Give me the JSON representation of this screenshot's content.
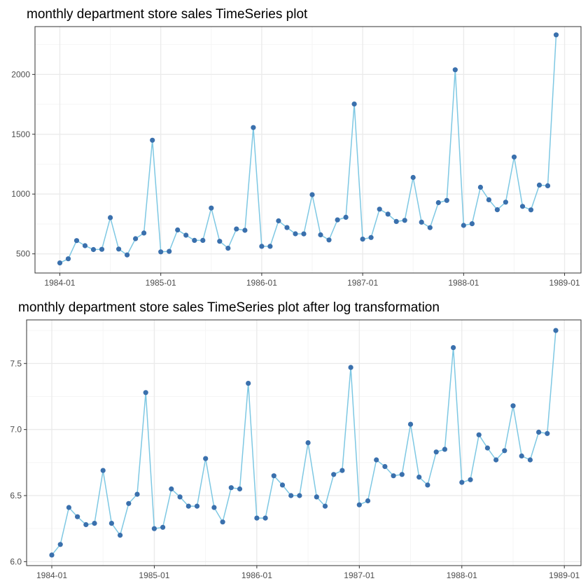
{
  "chart_data": [
    {
      "type": "line",
      "title": "monthly department store sales TimeSeries plot",
      "xlabel": "",
      "ylabel": "",
      "x_ticks": [
        "1984-01",
        "1985-01",
        "1986-01",
        "1987-01",
        "1988-01",
        "1989-01"
      ],
      "y_ticks": [
        "500",
        "1000",
        "1500",
        "2000"
      ],
      "ylim": [
        340,
        2400
      ],
      "grid": true,
      "colors": {
        "line": "#7ec8e3",
        "point": "#3a70ad",
        "grid_major": "#ebebeb",
        "grid_minor": "#f5f5f5",
        "border": "#333333"
      },
      "series": [
        {
          "x": [
            "1984-01",
            "1984-02",
            "1984-03",
            "1984-04",
            "1984-05",
            "1984-06",
            "1984-07",
            "1984-08",
            "1984-09",
            "1984-10",
            "1984-11",
            "1984-12",
            "1985-01",
            "1985-02",
            "1985-03",
            "1985-04",
            "1985-05",
            "1985-06",
            "1985-07",
            "1985-08",
            "1985-09",
            "1985-10",
            "1985-11",
            "1985-12",
            "1986-01",
            "1986-02",
            "1986-03",
            "1986-04",
            "1986-05",
            "1986-06",
            "1986-07",
            "1986-08",
            "1986-09",
            "1986-10",
            "1986-11",
            "1986-12",
            "1987-01",
            "1987-02",
            "1987-03",
            "1987-04",
            "1987-05",
            "1987-06",
            "1987-07",
            "1987-08",
            "1987-09",
            "1987-10",
            "1987-11",
            "1987-12",
            "1988-01",
            "1988-02",
            "1988-03",
            "1988-04",
            "1988-05",
            "1988-06",
            "1988-07",
            "1988-08",
            "1988-09",
            "1988-10",
            "1988-11",
            "1988-12"
          ],
          "values": [
            424,
            459,
            611,
            568,
            536,
            538,
            803,
            540,
            491,
            627,
            674,
            1450,
            517,
            521,
            700,
            656,
            613,
            613,
            883,
            605,
            547,
            708,
            697,
            1556,
            563,
            563,
            776,
            720,
            668,
            667,
            995,
            659,
            616,
            784,
            806,
            1753,
            623,
            637,
            874,
            832,
            771,
            780,
            1139,
            765,
            719,
            928,
            947,
            2039,
            738,
            752,
            1057,
            952,
            869,
            932,
            1310,
            897,
            868,
            1075,
            1069,
            2331
          ]
        }
      ]
    },
    {
      "type": "line",
      "title": "monthly department store sales TimeSeries plot after log transformation",
      "xlabel": "",
      "ylabel": "",
      "x_ticks": [
        "1984-01",
        "1985-01",
        "1986-01",
        "1987-01",
        "1988-01",
        "1989-01"
      ],
      "y_ticks": [
        "6.0",
        "6.5",
        "7.0",
        "7.5"
      ],
      "ylim": [
        5.97,
        7.83
      ],
      "grid": true,
      "colors": {
        "line": "#7ec8e3",
        "point": "#3a70ad",
        "grid_major": "#ebebeb",
        "grid_minor": "#f5f5f5",
        "border": "#333333"
      },
      "series": [
        {
          "x": [
            "1984-01",
            "1984-02",
            "1984-03",
            "1984-04",
            "1984-05",
            "1984-06",
            "1984-07",
            "1984-08",
            "1984-09",
            "1984-10",
            "1984-11",
            "1984-12",
            "1985-01",
            "1985-02",
            "1985-03",
            "1985-04",
            "1985-05",
            "1985-06",
            "1985-07",
            "1985-08",
            "1985-09",
            "1985-10",
            "1985-11",
            "1985-12",
            "1986-01",
            "1986-02",
            "1986-03",
            "1986-04",
            "1986-05",
            "1986-06",
            "1986-07",
            "1986-08",
            "1986-09",
            "1986-10",
            "1986-11",
            "1986-12",
            "1987-01",
            "1987-02",
            "1987-03",
            "1987-04",
            "1987-05",
            "1987-06",
            "1987-07",
            "1987-08",
            "1987-09",
            "1987-10",
            "1987-11",
            "1987-12",
            "1988-01",
            "1988-02",
            "1988-03",
            "1988-04",
            "1988-05",
            "1988-06",
            "1988-07",
            "1988-08",
            "1988-09",
            "1988-10",
            "1988-11",
            "1988-12"
          ],
          "values": [
            6.05,
            6.13,
            6.41,
            6.34,
            6.28,
            6.29,
            6.69,
            6.29,
            6.2,
            6.44,
            6.51,
            7.28,
            6.25,
            6.26,
            6.55,
            6.49,
            6.42,
            6.42,
            6.78,
            6.41,
            6.3,
            6.56,
            6.55,
            7.35,
            6.33,
            6.33,
            6.65,
            6.58,
            6.5,
            6.5,
            6.9,
            6.49,
            6.42,
            6.66,
            6.69,
            7.47,
            6.43,
            6.46,
            6.77,
            6.72,
            6.65,
            6.66,
            7.04,
            6.64,
            6.58,
            6.83,
            6.85,
            7.62,
            6.6,
            6.62,
            6.96,
            6.86,
            6.77,
            6.84,
            7.18,
            6.8,
            6.77,
            6.98,
            6.97,
            7.75
          ]
        }
      ]
    }
  ]
}
